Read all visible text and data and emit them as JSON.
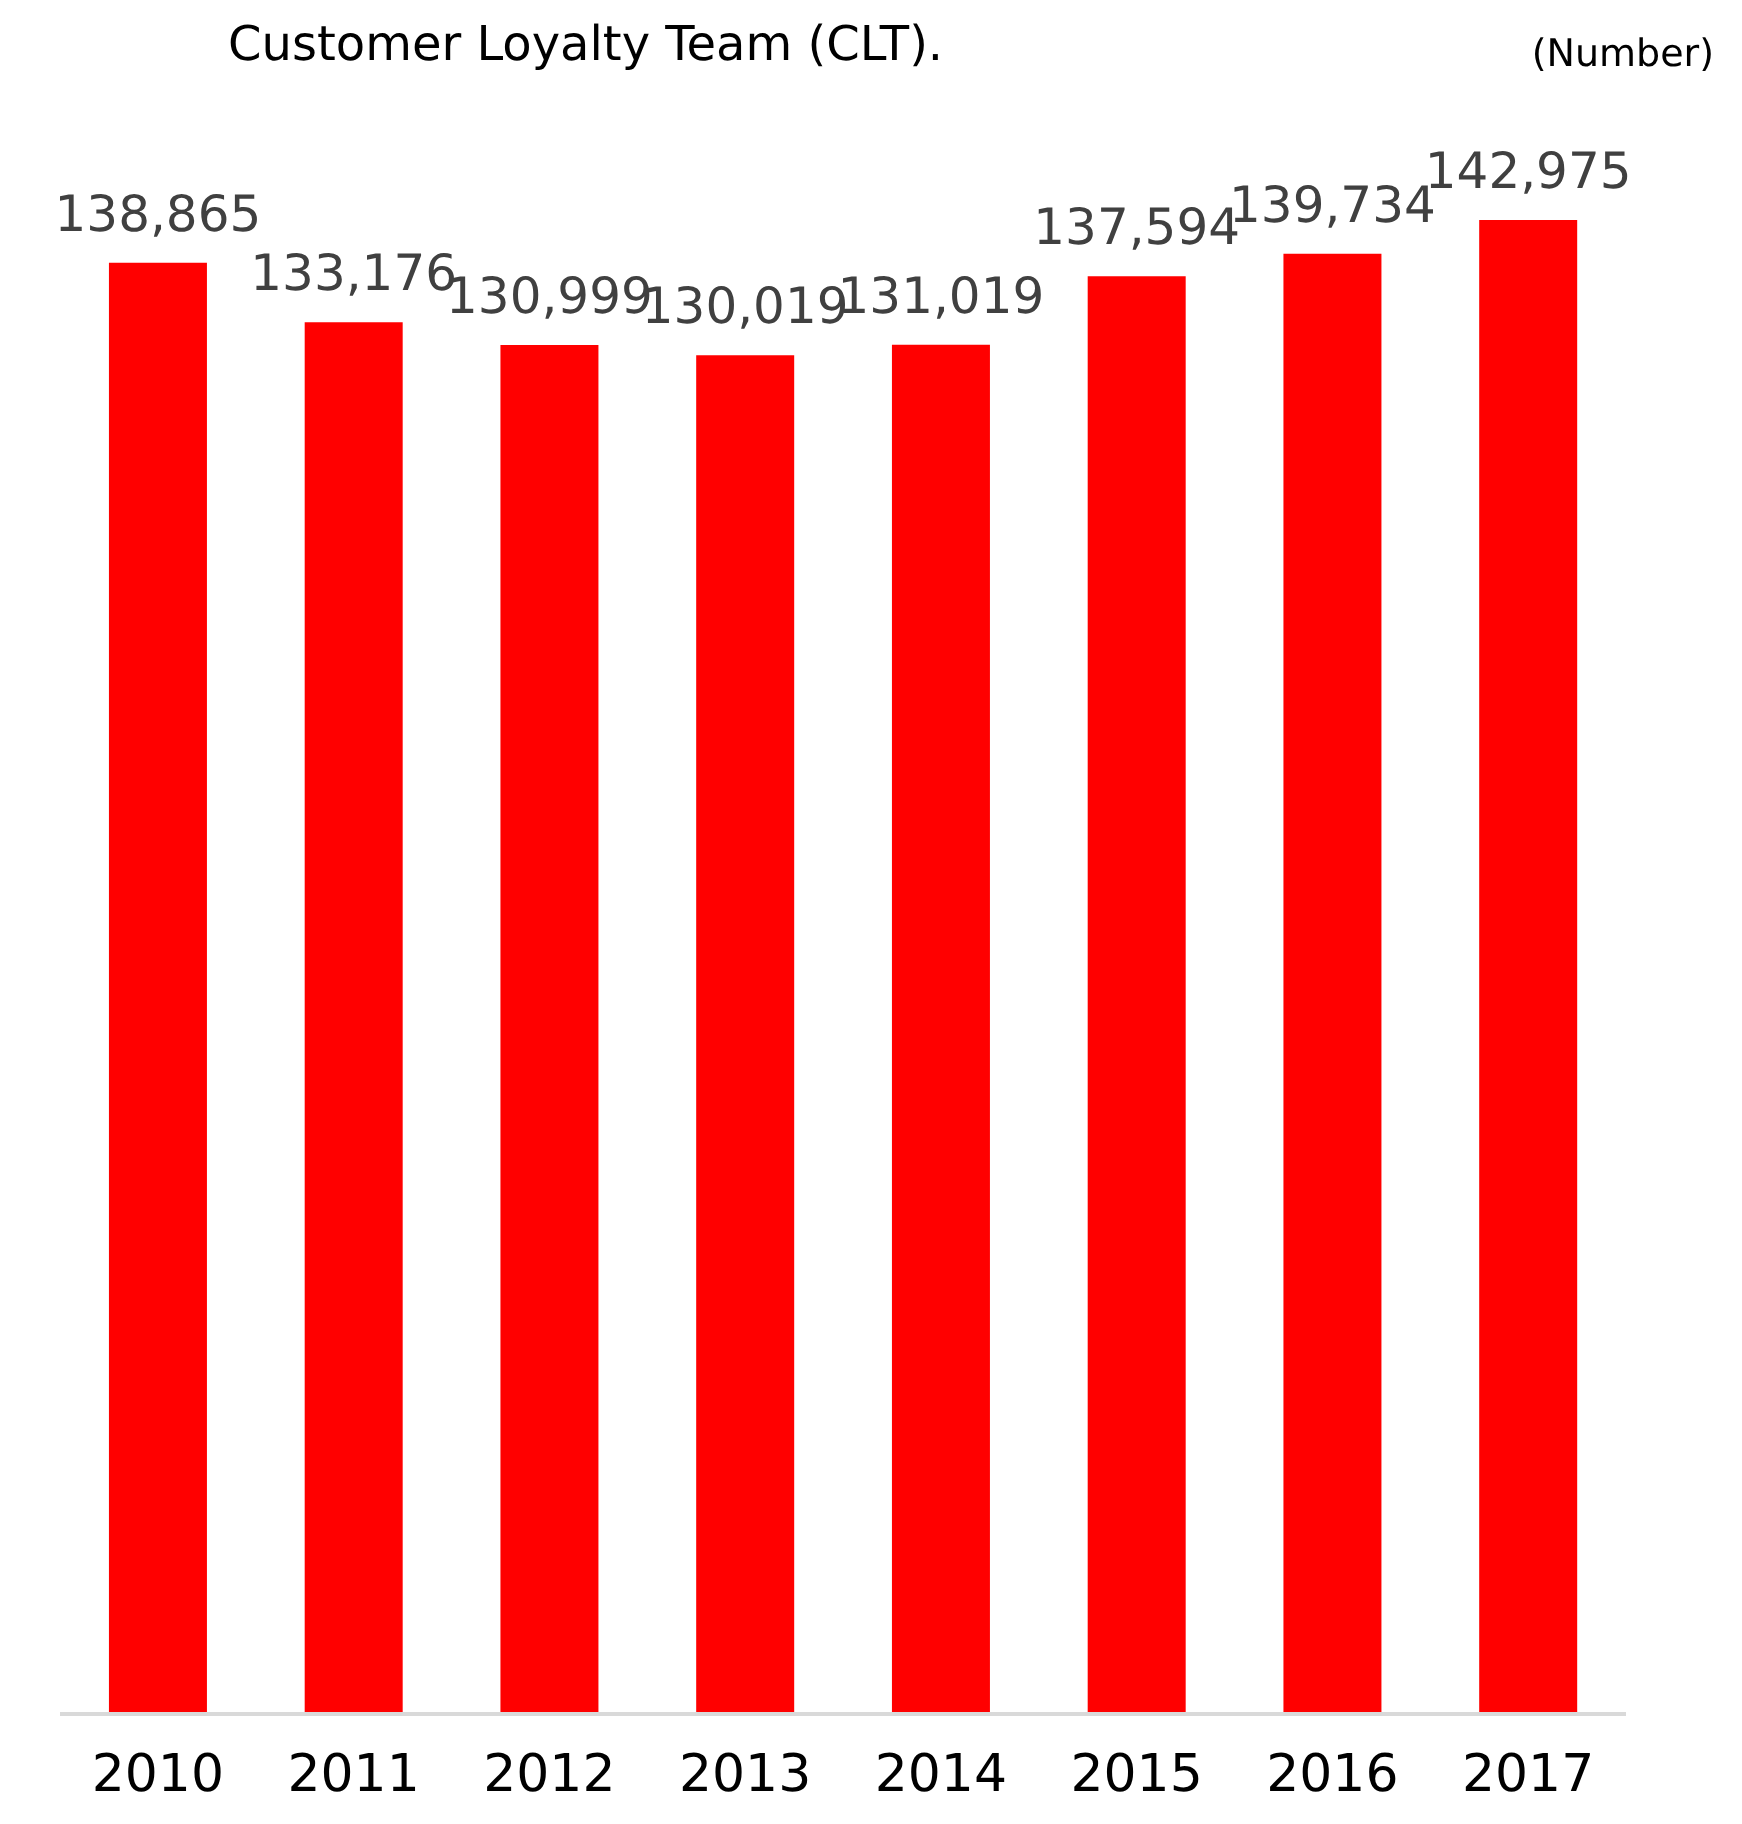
{
  "chart_data": {
    "type": "bar",
    "title": "Customer Loyalty Team (CLT).",
    "ylabel": "(Number)",
    "categories": [
      "2010",
      "2011",
      "2012",
      "2013",
      "2014",
      "2015",
      "2016",
      "2017"
    ],
    "values": [
      138865,
      133176,
      130999,
      130019,
      131019,
      137594,
      139734,
      142975
    ],
    "value_labels": [
      "138,865",
      "133,176",
      "130,999",
      "130,019",
      "131,019",
      "137,594",
      "139,734",
      "142,975"
    ],
    "color": "#ff0000",
    "grid": false,
    "legend": false
  }
}
